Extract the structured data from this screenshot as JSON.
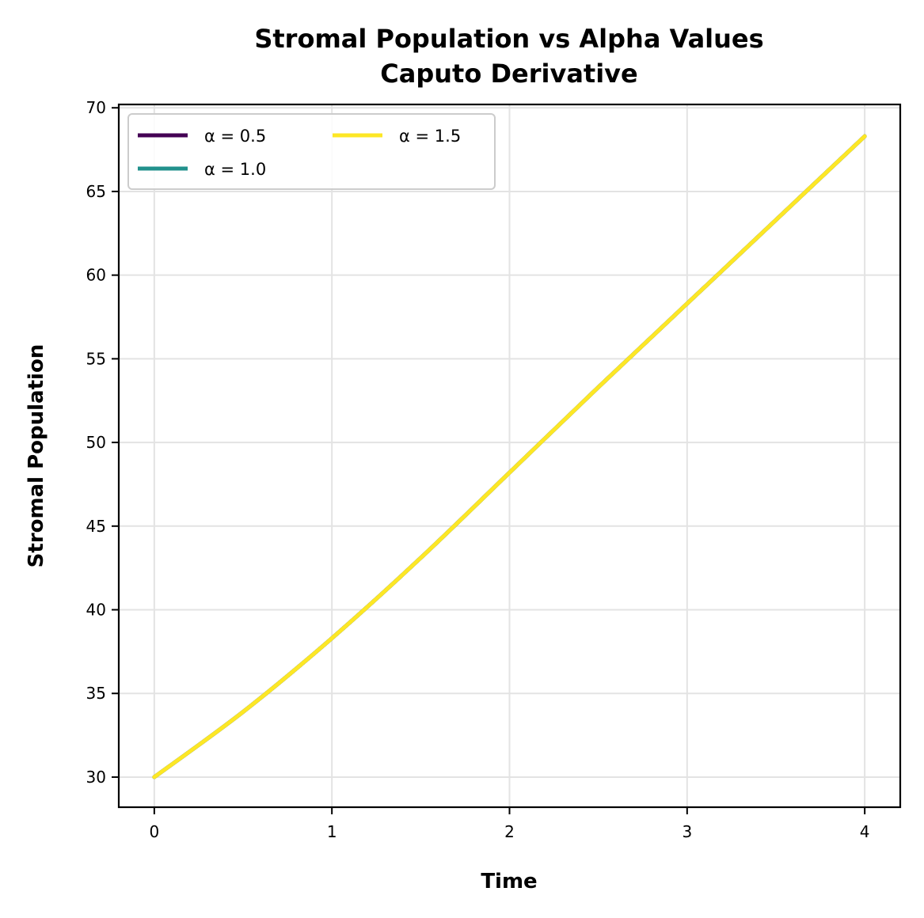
{
  "chart_data": {
    "type": "line",
    "title": "Stromal Population vs Alpha Values",
    "subtitle": "Caputo Derivative",
    "xlabel": "Time",
    "ylabel": "Stromal Population",
    "xlim": [
      -0.2,
      4.2
    ],
    "ylim": [
      28.2,
      70.2
    ],
    "xticks": [
      "0",
      "1",
      "2",
      "3",
      "4"
    ],
    "yticks": [
      "30",
      "35",
      "40",
      "45",
      "50",
      "55",
      "60",
      "65",
      "70"
    ],
    "grid": true,
    "legend": {
      "placement": "top-left",
      "columns": 2
    },
    "x": [
      0,
      0.5,
      1,
      1.5,
      2,
      2.5,
      3,
      3.5,
      4
    ],
    "series": [
      {
        "name": "α = 0.5",
        "color": "#440154",
        "values": [
          30.0,
          33.9,
          38.3,
          43.1,
          48.2,
          53.3,
          58.3,
          63.3,
          68.3
        ]
      },
      {
        "name": "α = 1.0",
        "color": "#21918c",
        "values": [
          30.0,
          33.9,
          38.3,
          43.1,
          48.2,
          53.3,
          58.3,
          63.3,
          68.3
        ]
      },
      {
        "name": "α = 1.5",
        "color": "#fde725",
        "values": [
          30.0,
          33.9,
          38.3,
          43.1,
          48.2,
          53.3,
          58.3,
          63.3,
          68.3
        ]
      }
    ]
  }
}
